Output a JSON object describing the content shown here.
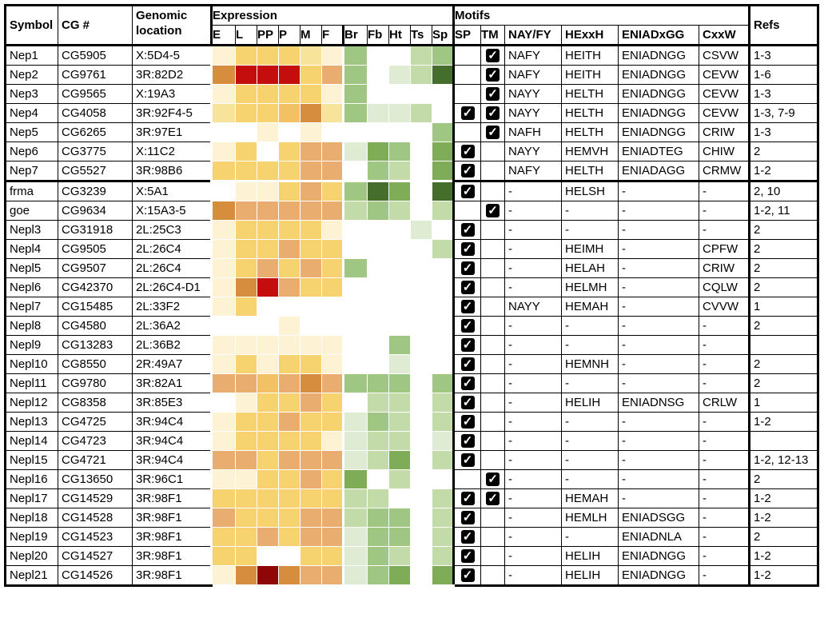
{
  "headers": {
    "symbol": "Symbol",
    "cg": "CG #",
    "location": "Genomic location",
    "expression": "Expression",
    "motifs": "Motifs",
    "refs": "Refs",
    "expr_cols": [
      "E",
      "L",
      "PP",
      "P",
      "M",
      "F",
      "Br",
      "Fb",
      "Ht",
      "Ts",
      "Sp"
    ],
    "motif_cols": [
      "SP",
      "TM",
      "NAY/FY",
      "HExxH",
      "ENIADxGG",
      "CxxW"
    ]
  },
  "checkbox_glyph": "✓",
  "colors": {
    "expression_levels": [
      "#ffffff",
      "#fdf2d3",
      "#f8e39a",
      "#f6d36e",
      "#f2c163",
      "#e9ad6f",
      "#d68d3d",
      "#c40d0d",
      "#8f0606"
    ],
    "tissue_levels": [
      "#ffffff",
      "#e0ebd4",
      "#c3dba9",
      "#9fc783",
      "#7fad57",
      "#5f8c3a",
      "#456d2b"
    ]
  },
  "rows": [
    {
      "symbol": "Nep1",
      "cg": "CG5905",
      "loc": "X:5D4-5",
      "expr": [
        1,
        3,
        3,
        3,
        2,
        1
      ],
      "tissue": [
        3,
        0,
        0,
        2,
        3
      ],
      "sp": false,
      "tm": true,
      "nay": "NAFY",
      "hexxh": "HEITH",
      "eniad": "ENIADNGG",
      "cxxw": "CSVW",
      "refs": "1-3"
    },
    {
      "symbol": "Nep2",
      "cg": "CG9761",
      "loc": "3R:82D2",
      "expr": [
        6,
        7,
        7,
        7,
        3,
        5
      ],
      "tissue": [
        3,
        0,
        1,
        2,
        6
      ],
      "sp": false,
      "tm": true,
      "nay": "NAFY",
      "hexxh": "HEITH",
      "eniad": "ENIADNGG",
      "cxxw": "CEVW",
      "refs": "1-6"
    },
    {
      "symbol": "Nep3",
      "cg": "CG9565",
      "loc": "X:19A3",
      "expr": [
        1,
        3,
        3,
        3,
        3,
        1
      ],
      "tissue": [
        3,
        0,
        0,
        0,
        0
      ],
      "sp": false,
      "tm": true,
      "nay": "NAYY",
      "hexxh": "HELTH",
      "eniad": "ENIADNGG",
      "cxxw": "CEVW",
      "refs": "1-3"
    },
    {
      "symbol": "Nep4",
      "cg": "CG4058",
      "loc": "3R:92F4-5",
      "expr": [
        2,
        3,
        3,
        4,
        6,
        2
      ],
      "tissue": [
        3,
        1,
        1,
        2,
        0
      ],
      "sp": true,
      "tm": true,
      "nay": "NAYY",
      "hexxh": "HELTH",
      "eniad": "ENIADNGG",
      "cxxw": "CEVW",
      "refs": "1-3, 7-9"
    },
    {
      "symbol": "Nep5",
      "cg": "CG6265",
      "loc": "3R:97E1",
      "expr": [
        0,
        0,
        1,
        0,
        1,
        0
      ],
      "tissue": [
        0,
        0,
        0,
        0,
        3
      ],
      "sp": false,
      "tm": true,
      "nay": "NAFH",
      "hexxh": "HELTH",
      "eniad": "ENIADNGG",
      "cxxw": "CRIW",
      "refs": "1-3"
    },
    {
      "symbol": "Nep6",
      "cg": "CG3775",
      "loc": "X:11C2",
      "expr": [
        1,
        3,
        0,
        3,
        5,
        5
      ],
      "tissue": [
        1,
        4,
        3,
        0,
        4
      ],
      "sp": true,
      "tm": false,
      "nay": "NAYY",
      "hexxh": "HEMVH",
      "eniad": "ENIADTEG",
      "cxxw": "CHIW",
      "refs": "2"
    },
    {
      "symbol": "Nep7",
      "cg": "CG5527",
      "loc": "3R:98B6",
      "expr": [
        3,
        3,
        3,
        3,
        5,
        5
      ],
      "tissue": [
        0,
        3,
        2,
        0,
        4
      ],
      "sp": true,
      "tm": false,
      "nay": "NAFY",
      "hexxh": "HELTH",
      "eniad": "ENIADAGG",
      "cxxw": "CRMW",
      "refs": "1-2"
    },
    {
      "symbol": "frma",
      "cg": "CG3239",
      "loc": "X:5A1",
      "expr": [
        0,
        1,
        1,
        3,
        5,
        3
      ],
      "tissue": [
        3,
        6,
        4,
        0,
        6
      ],
      "sp": true,
      "tm": false,
      "nay": "-",
      "hexxh": "HELSH",
      "eniad": "-",
      "cxxw": "-",
      "refs": "2, 10"
    },
    {
      "symbol": "goe",
      "cg": "CG9634",
      "loc": "X:15A3-5",
      "expr": [
        6,
        5,
        5,
        5,
        5,
        5
      ],
      "tissue": [
        2,
        3,
        2,
        0,
        2
      ],
      "sp": false,
      "tm": true,
      "nay": "-",
      "hexxh": "-",
      "eniad": "-",
      "cxxw": "-",
      "refs": "1-2, 11"
    },
    {
      "symbol": "Nepl3",
      "cg": "CG31918",
      "loc": "2L:25C3",
      "expr": [
        1,
        3,
        3,
        3,
        3,
        1
      ],
      "tissue": [
        0,
        0,
        0,
        1,
        0
      ],
      "sp": true,
      "tm": false,
      "nay": "-",
      "hexxh": "-",
      "eniad": "-",
      "cxxw": "-",
      "refs": "2"
    },
    {
      "symbol": "Nepl4",
      "cg": "CG9505",
      "loc": "2L:26C4",
      "expr": [
        1,
        3,
        3,
        5,
        3,
        3
      ],
      "tissue": [
        0,
        0,
        0,
        0,
        2
      ],
      "sp": true,
      "tm": false,
      "nay": "-",
      "hexxh": "HEIMH",
      "eniad": "-",
      "cxxw": "CPFW",
      "refs": "2"
    },
    {
      "symbol": "Nepl5",
      "cg": "CG9507",
      "loc": "2L:26C4",
      "expr": [
        1,
        3,
        5,
        3,
        5,
        3
      ],
      "tissue": [
        3,
        0,
        0,
        0,
        0
      ],
      "sp": true,
      "tm": false,
      "nay": "-",
      "hexxh": "HELAH",
      "eniad": "-",
      "cxxw": "CRIW",
      "refs": "2"
    },
    {
      "symbol": "Nepl6",
      "cg": "CG42370",
      "loc": "2L:26C4-D1",
      "expr": [
        1,
        6,
        7,
        5,
        3,
        3
      ],
      "tissue": [
        0,
        0,
        0,
        0,
        0
      ],
      "sp": true,
      "tm": false,
      "nay": "-",
      "hexxh": "HELMH",
      "eniad": "-",
      "cxxw": "CQLW",
      "refs": "2"
    },
    {
      "symbol": "Nepl7",
      "cg": "CG15485",
      "loc": "2L:33F2",
      "expr": [
        1,
        3,
        0,
        0,
        0,
        0
      ],
      "tissue": [
        0,
        0,
        0,
        0,
        0
      ],
      "sp": true,
      "tm": false,
      "nay": "NAYY",
      "hexxh": "HEMAH",
      "eniad": "-",
      "cxxw": "CVVW",
      "refs": "1"
    },
    {
      "symbol": "Nepl8",
      "cg": "CG4580",
      "loc": "2L:36A2",
      "expr": [
        0,
        0,
        0,
        1,
        0,
        0
      ],
      "tissue": [
        0,
        0,
        0,
        0,
        0
      ],
      "sp": true,
      "tm": false,
      "nay": "-",
      "hexxh": "-",
      "eniad": "-",
      "cxxw": "-",
      "refs": "2"
    },
    {
      "symbol": "Nepl9",
      "cg": "CG13283",
      "loc": "2L:36B2",
      "expr": [
        1,
        1,
        1,
        1,
        1,
        1
      ],
      "tissue": [
        0,
        0,
        3,
        0,
        0
      ],
      "sp": true,
      "tm": false,
      "nay": "-",
      "hexxh": "-",
      "eniad": "-",
      "cxxw": "-",
      "refs": ""
    },
    {
      "symbol": "Nepl10",
      "cg": "CG8550",
      "loc": "2R:49A7",
      "expr": [
        1,
        3,
        1,
        3,
        3,
        1
      ],
      "tissue": [
        0,
        0,
        1,
        0,
        0
      ],
      "sp": true,
      "tm": false,
      "nay": "-",
      "hexxh": "HEMNH",
      "eniad": "-",
      "cxxw": "-",
      "refs": "2"
    },
    {
      "symbol": "Nepl11",
      "cg": "CG9780",
      "loc": "3R:82A1",
      "expr": [
        5,
        5,
        4,
        5,
        6,
        5
      ],
      "tissue": [
        3,
        3,
        3,
        0,
        3
      ],
      "sp": true,
      "tm": false,
      "nay": "-",
      "hexxh": "-",
      "eniad": "-",
      "cxxw": "-",
      "refs": "2"
    },
    {
      "symbol": "Nepl12",
      "cg": "CG8358",
      "loc": "3R:85E3",
      "expr": [
        0,
        1,
        3,
        3,
        5,
        3
      ],
      "tissue": [
        0,
        2,
        2,
        0,
        2
      ],
      "sp": true,
      "tm": false,
      "nay": "-",
      "hexxh": "HELIH",
      "eniad": "ENIADNSG",
      "cxxw": "CRLW",
      "refs": "1"
    },
    {
      "symbol": "Nepl13",
      "cg": "CG4725",
      "loc": "3R:94C4",
      "expr": [
        1,
        3,
        3,
        5,
        3,
        3
      ],
      "tissue": [
        1,
        3,
        2,
        0,
        2
      ],
      "sp": true,
      "tm": false,
      "nay": "-",
      "hexxh": "-",
      "eniad": "-",
      "cxxw": "-",
      "refs": "1-2"
    },
    {
      "symbol": "Nepl14",
      "cg": "CG4723",
      "loc": "3R:94C4",
      "expr": [
        1,
        3,
        3,
        3,
        3,
        1
      ],
      "tissue": [
        1,
        2,
        2,
        0,
        1
      ],
      "sp": true,
      "tm": false,
      "nay": "-",
      "hexxh": "-",
      "eniad": "-",
      "cxxw": "-",
      "refs": ""
    },
    {
      "symbol": "Nepl15",
      "cg": "CG4721",
      "loc": "3R:94C4",
      "expr": [
        5,
        5,
        3,
        5,
        5,
        5
      ],
      "tissue": [
        1,
        2,
        4,
        0,
        2
      ],
      "sp": true,
      "tm": false,
      "nay": "-",
      "hexxh": "-",
      "eniad": "-",
      "cxxw": "-",
      "refs": "1-2, 12-13"
    },
    {
      "symbol": "Nepl16",
      "cg": "CG13650",
      "loc": "3R:96C1",
      "expr": [
        1,
        1,
        3,
        3,
        5,
        3
      ],
      "tissue": [
        4,
        0,
        2,
        0,
        0
      ],
      "sp": false,
      "tm": true,
      "nay": "-",
      "hexxh": "-",
      "eniad": "-",
      "cxxw": "-",
      "refs": "2"
    },
    {
      "symbol": "Nepl17",
      "cg": "CG14529",
      "loc": "3R:98F1",
      "expr": [
        3,
        3,
        3,
        3,
        3,
        3
      ],
      "tissue": [
        2,
        2,
        0,
        0,
        2
      ],
      "sp": true,
      "tm": true,
      "nay": "-",
      "hexxh": "HEMAH",
      "eniad": "-",
      "cxxw": "-",
      "refs": "1-2"
    },
    {
      "symbol": "Nepl18",
      "cg": "CG14528",
      "loc": "3R:98F1",
      "expr": [
        5,
        3,
        3,
        3,
        5,
        5
      ],
      "tissue": [
        2,
        3,
        3,
        0,
        2
      ],
      "sp": true,
      "tm": false,
      "nay": "-",
      "hexxh": "HEMLH",
      "eniad": "ENIADSGG",
      "cxxw": "-",
      "refs": "1-2"
    },
    {
      "symbol": "Nepl19",
      "cg": "CG14523",
      "loc": "3R:98F1",
      "expr": [
        3,
        3,
        5,
        3,
        5,
        5
      ],
      "tissue": [
        1,
        3,
        3,
        0,
        2
      ],
      "sp": true,
      "tm": false,
      "nay": "-",
      "hexxh": "-",
      "eniad": "ENIADNLA",
      "cxxw": "-",
      "refs": "2"
    },
    {
      "symbol": "Nepl20",
      "cg": "CG14527",
      "loc": "3R:98F1",
      "expr": [
        3,
        3,
        0,
        0,
        3,
        3
      ],
      "tissue": [
        1,
        3,
        2,
        0,
        2
      ],
      "sp": true,
      "tm": false,
      "nay": "-",
      "hexxh": "HELIH",
      "eniad": "ENIADNGG",
      "cxxw": "-",
      "refs": "1-2"
    },
    {
      "symbol": "Nepl21",
      "cg": "CG14526",
      "loc": "3R:98F1",
      "expr": [
        1,
        6,
        8,
        6,
        5,
        5
      ],
      "tissue": [
        1,
        3,
        4,
        0,
        4
      ],
      "sp": true,
      "tm": false,
      "nay": "-",
      "hexxh": "HELIH",
      "eniad": "ENIADNGG",
      "cxxw": "-",
      "refs": "1-2"
    }
  ]
}
